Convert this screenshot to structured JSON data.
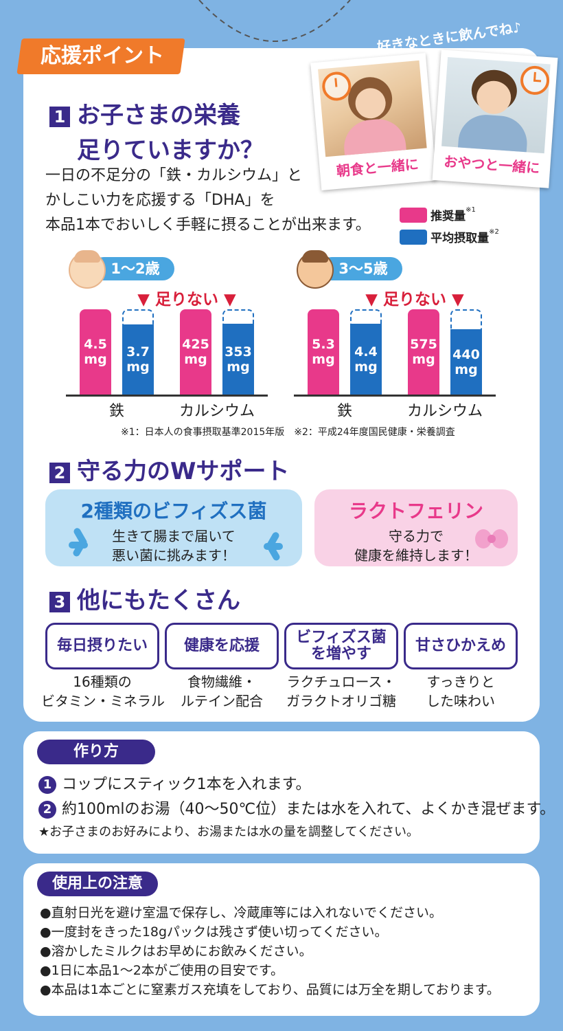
{
  "header": {
    "badge_label": "応援ポイント",
    "tagline": "好きなときに飲んでね♪"
  },
  "photos": [
    {
      "caption": "朝食と一緒に",
      "icon": "clock-icon"
    },
    {
      "caption": "おやつと一緒に",
      "icon": "clock-icon"
    }
  ],
  "section1": {
    "number": "1",
    "title_line1": "お子さまの栄養",
    "title_line2": "足りていますか？",
    "body_line1": "一日の不足分の「鉄・カルシウム」と",
    "body_line2": "かしこい力を応援する「DHA」を",
    "body_line3": "本品1本でおいしく手軽に摂ることが出来ます。",
    "legend": [
      {
        "label": "推奨量",
        "note": "※1",
        "color": "#e8398a"
      },
      {
        "label": "平均摂取量",
        "note": "※2",
        "color": "#1f6fc0"
      }
    ]
  },
  "chart_data": [
    {
      "type": "bar",
      "title": "1～2歳",
      "annotation": "足りない",
      "categories": [
        "鉄",
        "カルシウム"
      ],
      "series": [
        {
          "name": "推奨量",
          "values": [
            "4.5",
            "425"
          ],
          "units": "mg"
        },
        {
          "name": "平均摂取量",
          "values": [
            "3.7",
            "353"
          ],
          "units": "mg"
        }
      ],
      "fill_ratio": [
        0.82,
        0.83
      ]
    },
    {
      "type": "bar",
      "title": "3～5歳",
      "annotation": "足りない",
      "categories": [
        "鉄",
        "カルシウム"
      ],
      "series": [
        {
          "name": "推奨量",
          "values": [
            "5.3",
            "575"
          ],
          "units": "mg"
        },
        {
          "name": "平均摂取量",
          "values": [
            "4.4",
            "440"
          ],
          "units": "mg"
        }
      ],
      "fill_ratio": [
        0.83,
        0.77
      ]
    }
  ],
  "chart_unit": "mg",
  "footnote": "※1：日本人の食事摂取基準2015年版　※2：平成24年度国民健康・栄養調査",
  "section2": {
    "number": "2",
    "title": "守る力のWサポート",
    "boxes": [
      {
        "title": "2種類のビフィズス菌",
        "line1": "生きて腸まで届いて",
        "line2": "悪い菌に挑みます！"
      },
      {
        "title": "ラクトフェリン",
        "line1": "守る力で",
        "line2": "健康を維持します！"
      }
    ]
  },
  "section3": {
    "number": "3",
    "title": "他にもたくさん",
    "features": [
      {
        "label_line1": "毎日摂りたい",
        "label_line2": "",
        "desc_line1": "16種類の",
        "desc_line2": "ビタミン・ミネラル"
      },
      {
        "label_line1": "健康を応援",
        "label_line2": "",
        "desc_line1": "食物繊維・",
        "desc_line2": "ルテイン配合"
      },
      {
        "label_line1": "ビフィズス菌",
        "label_line2": "を増やす",
        "desc_line1": "ラクチュロース・",
        "desc_line2": "ガラクトオリゴ糖"
      },
      {
        "label_line1": "甘さひかえめ",
        "label_line2": "",
        "desc_line1": "すっきりと",
        "desc_line2": "した味わい"
      }
    ]
  },
  "howto": {
    "title": "作り方",
    "steps": [
      {
        "num": "1",
        "text": "コップにスティック1本を入れます。"
      },
      {
        "num": "2",
        "text": "約100mlのお湯（40～50℃位）または水を入れて、よくかき混ぜます。"
      }
    ],
    "note": "★お子さまのお好みにより、お湯または水の量を調整してください。"
  },
  "caution": {
    "title": "使用上の注意",
    "items": [
      "●直射日光を避け室温で保存し、冷蔵庫等には入れないでください。",
      "●一度封をきった18gパックは残さず使い切ってください。",
      "●溶かしたミルクはお早めにお飲みください。",
      "●1日に本品1～2本がご使用の目安です。",
      "●本品は1本ごとに窒素ガス充填をしており、品質には万全を期しております。"
    ]
  }
}
